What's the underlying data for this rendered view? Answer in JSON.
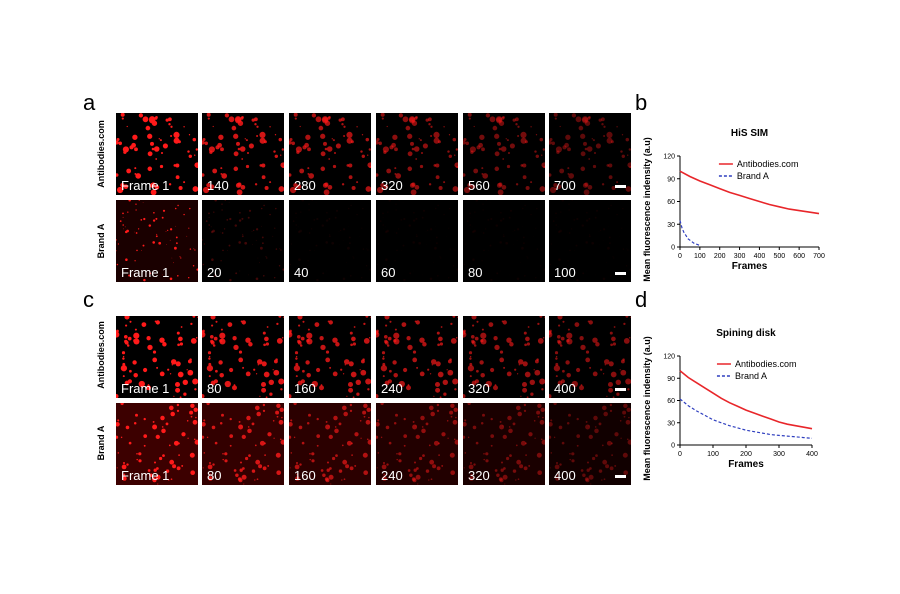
{
  "figure": {
    "panels": {
      "a": "a",
      "b": "b",
      "c": "c",
      "d": "d"
    },
    "row_labels": {
      "a_top": "Antibodies.com",
      "a_bottom": "Brand A",
      "c_top": "Antibodies.com",
      "c_bottom": "Brand A"
    },
    "frames": {
      "a_top": [
        "Frame 1",
        "140",
        "280",
        "320",
        "560",
        "700"
      ],
      "a_bottom": [
        "Frame 1",
        "20",
        "40",
        "60",
        "80",
        "100"
      ],
      "c_top": [
        "Frame 1",
        "80",
        "160",
        "240",
        "320",
        "400"
      ],
      "c_bottom": [
        "Frame 1",
        "80",
        "160",
        "240",
        "320",
        "400"
      ]
    },
    "colors": {
      "signal_red": "#ff1a1a",
      "antibodies_line": "#e8262a",
      "brand_a_line": "#2f3fbf"
    }
  },
  "chart_data": [
    {
      "type": "line",
      "title": "HiS SIM",
      "xlabel": "Frames",
      "ylabel": "Mean fluorescence indensity (a.u)",
      "xlim": [
        0,
        700
      ],
      "ylim": [
        0,
        120
      ],
      "xticks": [
        "0",
        "100",
        "200",
        "300",
        "400",
        "500",
        "600",
        "700"
      ],
      "yticks": [
        "0",
        "30",
        "60",
        "90",
        "120"
      ],
      "legend": "top-right",
      "series": [
        {
          "name": "Antibodies.com",
          "style": "solid",
          "x": [
            0,
            50,
            100,
            150,
            200,
            250,
            300,
            350,
            400,
            450,
            500,
            550,
            600,
            650,
            700
          ],
          "y": [
            100,
            93,
            87,
            82,
            77,
            72,
            68,
            64,
            60,
            56,
            53,
            50,
            48,
            46,
            44
          ]
        },
        {
          "name": "Brand A",
          "style": "dashed",
          "x": [
            0,
            10,
            20,
            30,
            40,
            50,
            60,
            70,
            80,
            90,
            100
          ],
          "y": [
            35,
            25,
            19,
            15,
            11,
            9,
            7,
            5,
            4,
            3,
            2
          ]
        }
      ]
    },
    {
      "type": "line",
      "title": "Spining disk",
      "xlabel": "Frames",
      "ylabel": "Mean fluorescence indensity (a.u)",
      "xlim": [
        0,
        400
      ],
      "ylim": [
        0,
        120
      ],
      "xticks": [
        "0",
        "100",
        "200",
        "300",
        "400"
      ],
      "yticks": [
        "0",
        "30",
        "60",
        "90",
        "120"
      ],
      "legend": "top-right",
      "series": [
        {
          "name": "Antibodies.com",
          "style": "solid",
          "x": [
            0,
            25,
            50,
            75,
            100,
            125,
            150,
            175,
            200,
            225,
            250,
            275,
            300,
            325,
            350,
            375,
            400
          ],
          "y": [
            100,
            91,
            84,
            77,
            70,
            63,
            57,
            52,
            47,
            43,
            39,
            35,
            31,
            28,
            26,
            24,
            22
          ]
        },
        {
          "name": "Brand A",
          "style": "dashed",
          "x": [
            0,
            25,
            50,
            75,
            100,
            125,
            150,
            175,
            200,
            225,
            250,
            275,
            300,
            325,
            350,
            375,
            400
          ],
          "y": [
            62,
            53,
            46,
            40,
            34,
            30,
            26,
            23,
            20,
            18,
            16,
            14,
            13,
            12,
            11,
            10,
            9
          ]
        }
      ]
    }
  ]
}
